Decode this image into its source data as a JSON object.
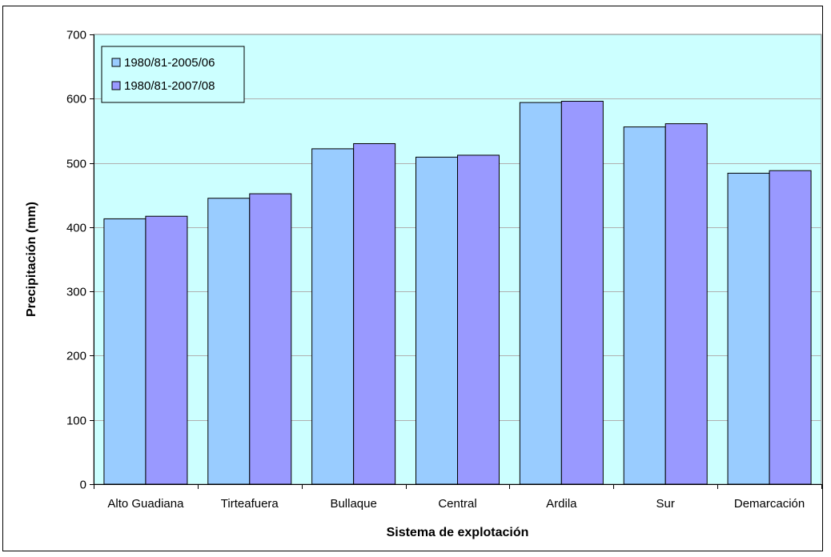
{
  "chart_data": {
    "type": "bar",
    "title": "",
    "xlabel": "Sistema de explotación",
    "ylabel": "Precipitación (mm)",
    "ylim": [
      0,
      700
    ],
    "yticks": [
      0,
      100,
      200,
      300,
      400,
      500,
      600,
      700
    ],
    "grid": true,
    "legend_position": "top-left",
    "plot_background": "#ccffff",
    "categories": [
      "Alto Guadiana",
      "Tirteafuera",
      "Bullaque",
      "Central",
      "Ardila",
      "Sur",
      "Demarcación"
    ],
    "series": [
      {
        "name": "1980/81-2005/06",
        "color": "#99ccff",
        "values": [
          413,
          445,
          522,
          509,
          594,
          556,
          484
        ]
      },
      {
        "name": "1980/81-2007/08",
        "color": "#9999ff",
        "values": [
          417,
          452,
          530,
          512,
          596,
          561,
          488
        ]
      }
    ]
  }
}
